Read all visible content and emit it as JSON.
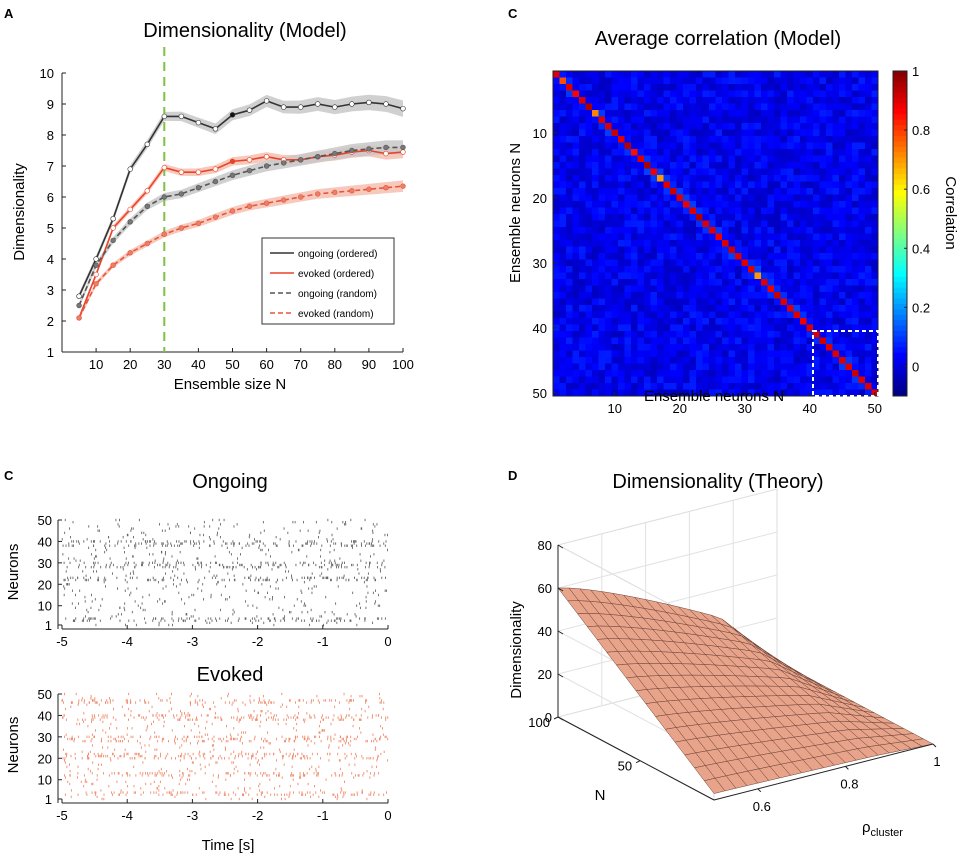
{
  "panels": {
    "a": {
      "letter": "A",
      "title": "Dimensionality (Model)"
    },
    "c1": {
      "letter": "C",
      "title": "Average correlation (Model)"
    },
    "c2": {
      "letter": "C",
      "title": "Ongoing",
      "title2": "Evoked"
    },
    "d": {
      "letter": "D",
      "title": "Dimensionality (Theory)"
    }
  },
  "colors": {
    "ongoing": "#333333",
    "evoked": "#e8442a",
    "ongoing_random": "#555555",
    "evoked_random": "#e8553a",
    "ongoing_band": "#c8c8c8",
    "evoked_band": "#f6c0b2",
    "vline": "#7cc243",
    "raster_ongoing": "#666666",
    "raster_evoked": "#f08a6a",
    "surface_fill": "#e8a48a",
    "surface_line": "#6b4035"
  },
  "chart_data": [
    {
      "id": "dimensionality-model",
      "type": "line",
      "title": "Dimensionality (Model)",
      "xlabel": "Ensemble size N",
      "ylabel": "Dimensionality",
      "xlim": [
        0,
        100
      ],
      "ylim": [
        1,
        10
      ],
      "xticks": [
        "10",
        "20",
        "30",
        "40",
        "50",
        "60",
        "70",
        "80",
        "90",
        "100"
      ],
      "yticks": [
        "1",
        "2",
        "3",
        "4",
        "5",
        "6",
        "7",
        "8",
        "9",
        "10"
      ],
      "vline_x": 30,
      "legend_position": "bottom-right",
      "series": [
        {
          "name": "ongoing (ordered)",
          "style": "solid",
          "x": [
            5,
            10,
            15,
            20,
            25,
            30,
            35,
            40,
            45,
            50,
            55,
            60,
            65,
            70,
            75,
            80,
            85,
            90,
            95,
            100
          ],
          "values": [
            2.8,
            4.0,
            5.3,
            6.9,
            7.7,
            8.6,
            8.6,
            8.4,
            8.2,
            8.65,
            8.8,
            9.1,
            8.9,
            8.9,
            9.0,
            8.9,
            9.0,
            9.05,
            9.0,
            8.85
          ]
        },
        {
          "name": "evoked (ordered)",
          "style": "solid",
          "x": [
            5,
            10,
            15,
            20,
            25,
            30,
            35,
            40,
            45,
            50,
            55,
            60,
            65,
            70,
            75,
            80,
            85,
            90,
            95,
            100
          ],
          "values": [
            2.1,
            3.5,
            5.0,
            5.6,
            6.2,
            6.95,
            6.8,
            6.8,
            6.9,
            7.15,
            7.2,
            7.3,
            7.2,
            7.2,
            7.3,
            7.35,
            7.45,
            7.5,
            7.4,
            7.45
          ]
        },
        {
          "name": "ongoing (random)",
          "style": "dashed",
          "x": [
            5,
            10,
            15,
            20,
            25,
            30,
            35,
            40,
            45,
            50,
            55,
            60,
            65,
            70,
            75,
            80,
            85,
            90,
            95,
            100
          ],
          "values": [
            2.5,
            3.8,
            4.6,
            5.2,
            5.7,
            6.0,
            6.1,
            6.3,
            6.5,
            6.7,
            6.85,
            7.0,
            7.1,
            7.2,
            7.3,
            7.4,
            7.5,
            7.55,
            7.6,
            7.6
          ]
        },
        {
          "name": "evoked (random)",
          "style": "dashed",
          "x": [
            5,
            10,
            15,
            20,
            25,
            30,
            35,
            40,
            45,
            50,
            55,
            60,
            65,
            70,
            75,
            80,
            85,
            90,
            95,
            100
          ],
          "values": [
            2.1,
            3.2,
            3.8,
            4.2,
            4.5,
            4.8,
            5.0,
            5.15,
            5.35,
            5.55,
            5.7,
            5.8,
            5.9,
            6.0,
            6.1,
            6.15,
            6.2,
            6.25,
            6.3,
            6.35
          ]
        }
      ]
    },
    {
      "id": "average-correlation-model",
      "type": "heatmap",
      "title": "Average correlation (Model)",
      "xlabel": "Ensemble neurons N",
      "ylabel": "Ensemble neurons N",
      "size": 50,
      "xticks": [
        "10",
        "20",
        "30",
        "40",
        "50"
      ],
      "yticks": [
        "10",
        "20",
        "30",
        "40",
        "50"
      ],
      "colorbar_label": "Correlation",
      "colorbar_range": [
        -0.1,
        1
      ],
      "colorbar_ticks": [
        "0",
        "0.2",
        "0.4",
        "0.6",
        "0.8",
        "1"
      ],
      "offdiagonal_mean": 0.02,
      "diagonal": [
        0.9,
        0.78,
        0.9,
        0.86,
        0.9,
        0.95,
        0.72,
        0.9,
        0.9,
        0.92,
        0.9,
        0.94,
        0.85,
        0.9,
        0.95,
        0.88,
        0.7,
        0.9,
        0.92,
        0.9,
        0.88,
        0.9,
        0.95,
        0.9,
        0.9,
        0.88,
        0.9,
        0.92,
        0.9,
        0.9,
        0.9,
        0.7,
        0.9,
        0.88,
        0.92,
        0.9,
        0.9,
        0.9,
        0.88,
        0.9,
        0.9,
        0.92,
        0.9,
        0.9,
        0.9,
        0.9,
        0.92,
        0.9,
        0.9,
        0.9
      ],
      "highlight_box": [
        41,
        50
      ]
    },
    {
      "id": "raster-ongoing",
      "type": "scatter",
      "title": "Ongoing",
      "ylabel": "Neurons",
      "xlim": [
        -5,
        0
      ],
      "ylim": [
        1,
        50
      ],
      "xticks": [
        "-5",
        "-4",
        "-3",
        "-2",
        "-1",
        "0"
      ],
      "yticks": [
        "1",
        "10",
        "20",
        "30",
        "40",
        "50"
      ]
    },
    {
      "id": "raster-evoked",
      "type": "scatter",
      "title": "Evoked",
      "xlabel": "Time [s]",
      "ylabel": "Neurons",
      "xlim": [
        -5,
        0
      ],
      "ylim": [
        1,
        50
      ],
      "xticks": [
        "-5",
        "-4",
        "-3",
        "-2",
        "-1",
        "0"
      ],
      "yticks": [
        "1",
        "10",
        "20",
        "30",
        "40",
        "50"
      ]
    },
    {
      "id": "dimensionality-theory",
      "type": "area",
      "title": "Dimensionality (Theory)",
      "zlabel": "Dimensionality",
      "xlabel": "N",
      "ylabel_main": "ρ",
      "ylabel_sub": "cluster",
      "zticks": [
        "0",
        "20",
        "40",
        "60",
        "80"
      ],
      "nticks": [
        "100",
        "50"
      ],
      "rhoticks": [
        "0.6",
        "0.8",
        "1"
      ],
      "zlim": [
        0,
        80
      ],
      "nlim": [
        5,
        100
      ],
      "rholim": [
        0.5,
        1
      ]
    }
  ]
}
